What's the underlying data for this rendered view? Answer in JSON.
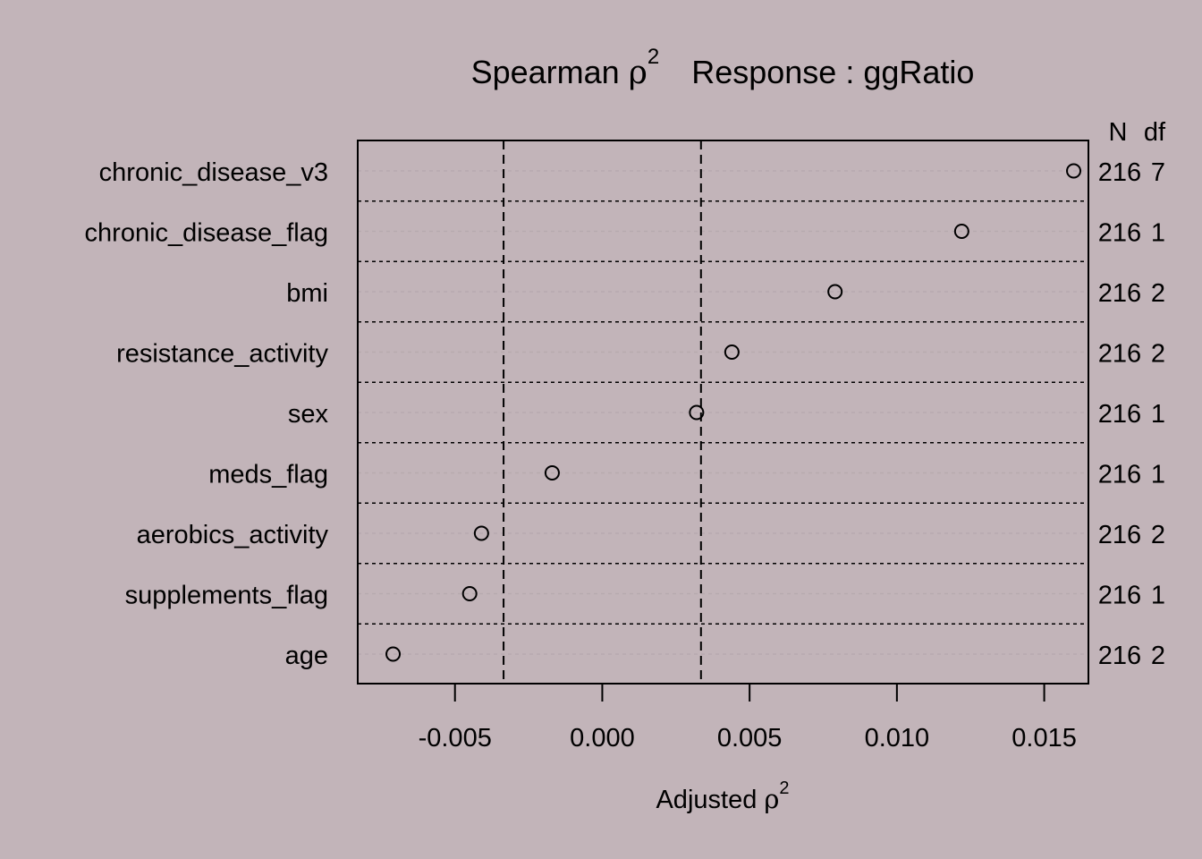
{
  "colors": {
    "background": "#C2B4B9",
    "foreground": "#000000",
    "grid": "#B7AAAF"
  },
  "chart_data": {
    "type": "scatter",
    "title": {
      "text_left": "Spearman",
      "symbol": "ρ",
      "exponent": "2",
      "text_right": "Response : ggRatio"
    },
    "xlabel": {
      "text": "Adjusted",
      "symbol": "ρ",
      "exponent": "2"
    },
    "xlim": [
      -0.0083,
      0.0165
    ],
    "xticks": [
      -0.005,
      0.0,
      0.005,
      0.01,
      0.015
    ],
    "xtick_labels": [
      "-0.005",
      "0.000",
      "0.005",
      "0.010",
      "0.015"
    ],
    "reference_lines": [
      -0.00335,
      0.00335
    ],
    "right_header": {
      "n": "N",
      "df": "df"
    },
    "rows": [
      {
        "label": "chronic_disease_v3",
        "value": 0.016,
        "n": "216",
        "df": "7"
      },
      {
        "label": "chronic_disease_flag",
        "value": 0.0122,
        "n": "216",
        "df": "1"
      },
      {
        "label": "bmi",
        "value": 0.0079,
        "n": "216",
        "df": "2"
      },
      {
        "label": "resistance_activity",
        "value": 0.0044,
        "n": "216",
        "df": "2"
      },
      {
        "label": "sex",
        "value": 0.0032,
        "n": "216",
        "df": "1"
      },
      {
        "label": "meds_flag",
        "value": -0.0017,
        "n": "216",
        "df": "1"
      },
      {
        "label": "aerobics_activity",
        "value": -0.0041,
        "n": "216",
        "df": "2"
      },
      {
        "label": "supplements_flag",
        "value": -0.0045,
        "n": "216",
        "df": "1"
      },
      {
        "label": "age",
        "value": -0.0071,
        "n": "216",
        "df": "2"
      }
    ]
  }
}
